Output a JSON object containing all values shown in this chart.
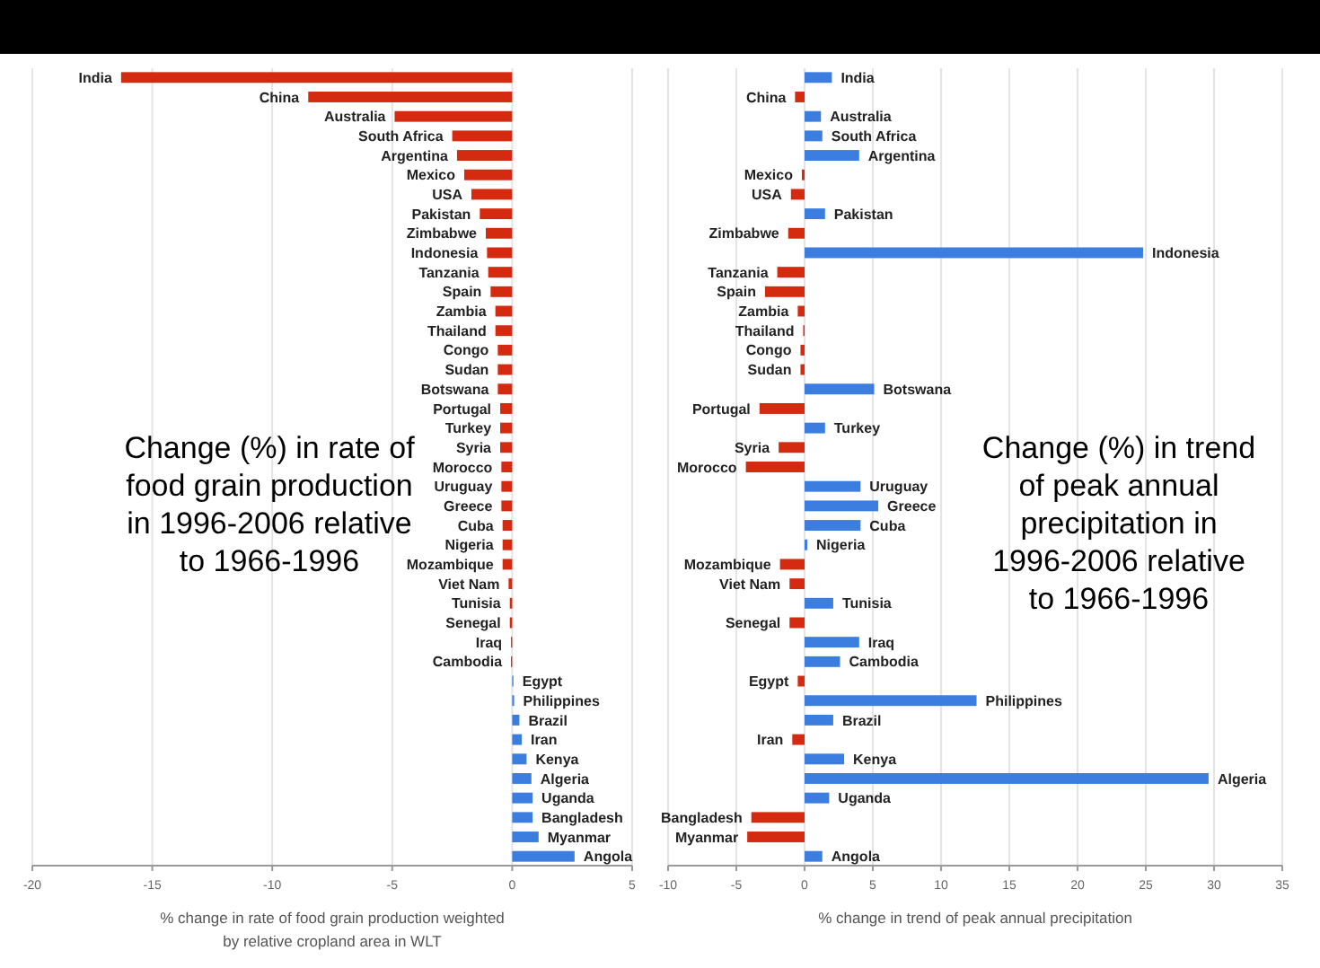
{
  "chart_data": [
    {
      "type": "bar",
      "orientation": "horizontal",
      "categories": [
        "India",
        "China",
        "Australia",
        "South Africa",
        "Argentina",
        "Mexico",
        "USA",
        "Pakistan",
        "Zimbabwe",
        "Indonesia",
        "Tanzania",
        "Spain",
        "Zambia",
        "Thailand",
        "Congo",
        "Sudan",
        "Botswana",
        "Portugal",
        "Turkey",
        "Syria",
        "Morocco",
        "Uruguay",
        "Greece",
        "Cuba",
        "Nigeria",
        "Mozambique",
        "Viet Nam",
        "Tunisia",
        "Senegal",
        "Iraq",
        "Cambodia",
        "Egypt",
        "Philippines",
        "Brazil",
        "Iran",
        "Kenya",
        "Algeria",
        "Uganda",
        "Bangladesh",
        "Myanmar",
        "Angola"
      ],
      "values": [
        -16.3,
        -8.5,
        -4.9,
        -2.5,
        -2.3,
        -2.0,
        -1.7,
        -1.35,
        -1.1,
        -1.05,
        -1.0,
        -0.9,
        -0.7,
        -0.7,
        -0.6,
        -0.6,
        -0.6,
        -0.5,
        -0.5,
        -0.5,
        -0.45,
        -0.45,
        -0.45,
        -0.4,
        -0.4,
        -0.4,
        -0.15,
        -0.1,
        -0.1,
        -0.05,
        -0.05,
        0.05,
        0.08,
        0.3,
        0.4,
        0.6,
        0.8,
        0.85,
        0.85,
        1.1,
        2.6
      ],
      "colors": [
        "#d42a10",
        "#d42a10",
        "#d42a10",
        "#d42a10",
        "#d42a10",
        "#d42a10",
        "#d42a10",
        "#d42a10",
        "#d42a10",
        "#d42a10",
        "#d42a10",
        "#d42a10",
        "#d42a10",
        "#d42a10",
        "#d42a10",
        "#d42a10",
        "#d42a10",
        "#d42a10",
        "#d42a10",
        "#d42a10",
        "#d42a10",
        "#d42a10",
        "#d42a10",
        "#d42a10",
        "#d42a10",
        "#d42a10",
        "#d42a10",
        "#d42a10",
        "#d42a10",
        "#d42a10",
        "#d42a10",
        "#3b7ee0",
        "#3b7ee0",
        "#3b7ee0",
        "#3b7ee0",
        "#3b7ee0",
        "#3b7ee0",
        "#3b7ee0",
        "#3b7ee0",
        "#3b7ee0",
        "#3b7ee0"
      ],
      "xlim": [
        -20,
        5
      ],
      "xticks": [
        -20,
        -15,
        -10,
        -5,
        0,
        5
      ],
      "grid": "x",
      "xlabel": "% change in rate of food grain production weighted by relative cropland area in WLT",
      "annotations": [
        "Change (%) in rate of food grain production in 1996-2006 relative to 1966-1996"
      ]
    },
    {
      "type": "bar",
      "orientation": "horizontal",
      "categories": [
        "India",
        "China",
        "Australia",
        "South Africa",
        "Argentina",
        "Mexico",
        "USA",
        "Pakistan",
        "Zimbabwe",
        "Indonesia",
        "Tanzania",
        "Spain",
        "Zambia",
        "Thailand",
        "Congo",
        "Sudan",
        "Botswana",
        "Portugal",
        "Turkey",
        "Syria",
        "Morocco",
        "Uruguay",
        "Greece",
        "Cuba",
        "Nigeria",
        "Mozambique",
        "Viet Nam",
        "Tunisia",
        "Senegal",
        "Iraq",
        "Cambodia",
        "Egypt",
        "Philippines",
        "Brazil",
        "Iran",
        "Kenya",
        "Algeria",
        "Uganda",
        "Bangladesh",
        "Myanmar",
        "Angola"
      ],
      "values": [
        2.0,
        -0.7,
        1.2,
        1.3,
        4.0,
        -0.2,
        -1.0,
        1.5,
        -1.2,
        24.8,
        -2.0,
        -2.9,
        -0.5,
        -0.1,
        -0.3,
        -0.3,
        5.1,
        -3.3,
        1.5,
        -1.9,
        -4.3,
        4.1,
        5.4,
        4.1,
        0.2,
        -1.8,
        -1.1,
        2.1,
        -1.1,
        4.0,
        2.6,
        -0.5,
        12.6,
        2.1,
        -0.9,
        2.9,
        29.6,
        1.8,
        -3.9,
        -4.2,
        1.3
      ],
      "colors": [
        "#3b7ee0",
        "#d42a10",
        "#3b7ee0",
        "#3b7ee0",
        "#3b7ee0",
        "#d42a10",
        "#d42a10",
        "#3b7ee0",
        "#d42a10",
        "#3b7ee0",
        "#d42a10",
        "#d42a10",
        "#d42a10",
        "#d42a10",
        "#d42a10",
        "#d42a10",
        "#3b7ee0",
        "#d42a10",
        "#3b7ee0",
        "#d42a10",
        "#d42a10",
        "#3b7ee0",
        "#3b7ee0",
        "#3b7ee0",
        "#3b7ee0",
        "#d42a10",
        "#d42a10",
        "#3b7ee0",
        "#d42a10",
        "#3b7ee0",
        "#3b7ee0",
        "#d42a10",
        "#3b7ee0",
        "#3b7ee0",
        "#d42a10",
        "#3b7ee0",
        "#3b7ee0",
        "#3b7ee0",
        "#d42a10",
        "#d42a10",
        "#3b7ee0"
      ],
      "xlim": [
        -10,
        35
      ],
      "xticks": [
        -10,
        -5,
        0,
        5,
        10,
        15,
        20,
        25,
        30,
        35
      ],
      "grid": "x",
      "xlabel": "% change in trend of peak annual precipitation",
      "annotations": [
        "Change (%) in trend of peak annual precipitation in 1996-2006 relative to 1966-1996"
      ]
    }
  ]
}
